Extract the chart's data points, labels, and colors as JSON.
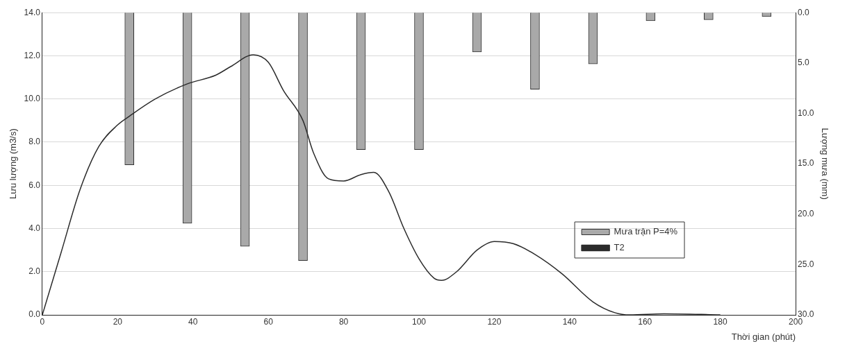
{
  "chart_data": {
    "type": "line",
    "xlabel": "Thời gian (phút)",
    "ylabel": "Lưu lượng (m3/s)",
    "y2label": "Lượng mưa (mm)",
    "xlim": [
      0,
      200
    ],
    "xticks": [
      0,
      20,
      40,
      60,
      80,
      100,
      120,
      140,
      160,
      180,
      200
    ],
    "ylim": [
      0,
      14
    ],
    "yticks": [
      {
        "value": 0,
        "label": "0.0"
      },
      {
        "value": 2,
        "label": "2.0"
      },
      {
        "value": 4,
        "label": "4.0"
      },
      {
        "value": 6,
        "label": "6.0"
      },
      {
        "value": 8,
        "label": "8.0"
      },
      {
        "value": 10,
        "label": "10.0"
      },
      {
        "value": 12,
        "label": "12.0"
      },
      {
        "value": 14,
        "label": "14.0"
      }
    ],
    "y2lim": [
      30,
      0
    ],
    "y2ticks": [
      {
        "value": 0,
        "label": "0.0"
      },
      {
        "value": 5,
        "label": "5.0"
      },
      {
        "value": 10,
        "label": "10.0"
      },
      {
        "value": 15,
        "label": "15.0"
      },
      {
        "value": 20,
        "label": "20.0"
      },
      {
        "value": 25,
        "label": "25.0"
      },
      {
        "value": 30,
        "label": "30.0"
      }
    ],
    "grid": "y",
    "legend": "bottom right",
    "series": [
      {
        "name": "Mưa trận P=4%",
        "type": "bar",
        "axis": "y2",
        "color": "#a9a9a9",
        "x": [
          23.1,
          38.5,
          53.8,
          69.2,
          84.6,
          100,
          115.4,
          130.8,
          146.2,
          161.5,
          176.9,
          192.3
        ],
        "values": [
          15.1,
          20.9,
          23.2,
          24.6,
          13.6,
          13.6,
          3.9,
          7.6,
          5.1,
          0.8,
          0.7,
          0.4
        ]
      },
      {
        "name": "T2",
        "color": "#2b2b2b",
        "x": [
          0,
          5,
          10,
          15,
          20,
          23.1,
          30,
          38.5,
          46,
          50,
          56,
          60,
          64,
          69.2,
          72,
          76,
          80,
          84.6,
          88,
          92,
          96,
          100,
          104,
          106,
          110,
          115.4,
          120,
          125,
          130.8,
          138,
          146.2,
          152,
          156,
          165,
          180
        ],
        "values": [
          0,
          2.9,
          5.8,
          7.8,
          8.8,
          9.2,
          10.0,
          10.7,
          11.1,
          11.5,
          12.05,
          11.7,
          10.4,
          9.0,
          7.5,
          6.3,
          6.2,
          6.5,
          6.6,
          5.7,
          4.0,
          2.6,
          1.7,
          1.6,
          2.0,
          3.0,
          3.4,
          3.3,
          2.8,
          1.9,
          0.6,
          0.1,
          0.0,
          0.05,
          0.0
        ]
      }
    ]
  }
}
